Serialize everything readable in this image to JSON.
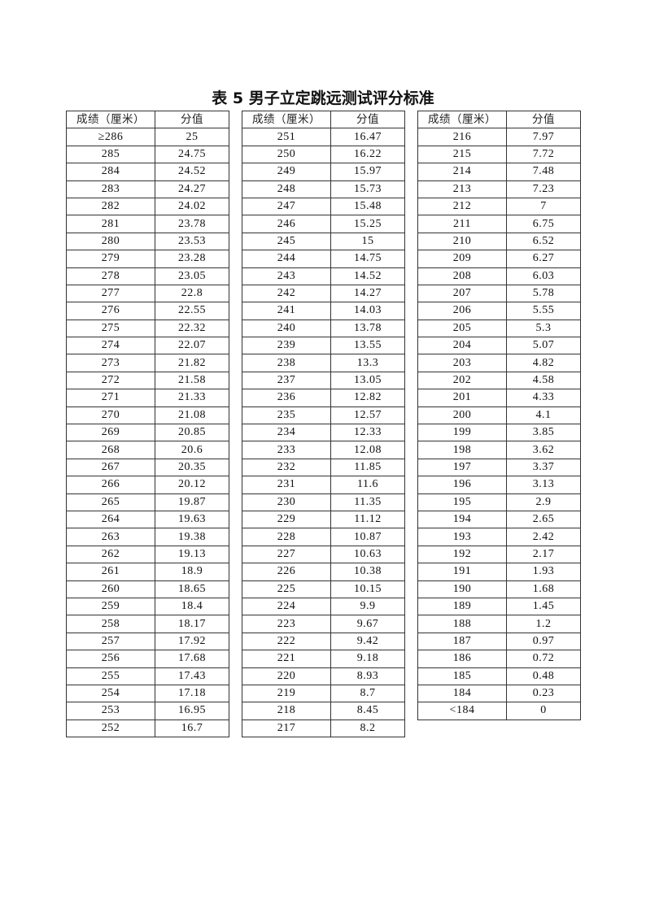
{
  "title": "表 5  男子立定跳远测试评分标准",
  "header": {
    "score": "成绩（厘米）",
    "points": "分值"
  },
  "tables": [
    {
      "rows": [
        [
          "≥286",
          "25"
        ],
        [
          "285",
          "24.75"
        ],
        [
          "284",
          "24.52"
        ],
        [
          "283",
          "24.27"
        ],
        [
          "282",
          "24.02"
        ],
        [
          "281",
          "23.78"
        ],
        [
          "280",
          "23.53"
        ],
        [
          "279",
          "23.28"
        ],
        [
          "278",
          "23.05"
        ],
        [
          "277",
          "22.8"
        ],
        [
          "276",
          "22.55"
        ],
        [
          "275",
          "22.32"
        ],
        [
          "274",
          "22.07"
        ],
        [
          "273",
          "21.82"
        ],
        [
          "272",
          "21.58"
        ],
        [
          "271",
          "21.33"
        ],
        [
          "270",
          "21.08"
        ],
        [
          "269",
          "20.85"
        ],
        [
          "268",
          "20.6"
        ],
        [
          "267",
          "20.35"
        ],
        [
          "266",
          "20.12"
        ],
        [
          "265",
          "19.87"
        ],
        [
          "264",
          "19.63"
        ],
        [
          "263",
          "19.38"
        ],
        [
          "262",
          "19.13"
        ],
        [
          "261",
          "18.9"
        ],
        [
          "260",
          "18.65"
        ],
        [
          "259",
          "18.4"
        ],
        [
          "258",
          "18.17"
        ],
        [
          "257",
          "17.92"
        ],
        [
          "256",
          "17.68"
        ],
        [
          "255",
          "17.43"
        ],
        [
          "254",
          "17.18"
        ],
        [
          "253",
          "16.95"
        ],
        [
          "252",
          "16.7"
        ]
      ]
    },
    {
      "rows": [
        [
          "251",
          "16.47"
        ],
        [
          "250",
          "16.22"
        ],
        [
          "249",
          "15.97"
        ],
        [
          "248",
          "15.73"
        ],
        [
          "247",
          "15.48"
        ],
        [
          "246",
          "15.25"
        ],
        [
          "245",
          "15"
        ],
        [
          "244",
          "14.75"
        ],
        [
          "243",
          "14.52"
        ],
        [
          "242",
          "14.27"
        ],
        [
          "241",
          "14.03"
        ],
        [
          "240",
          "13.78"
        ],
        [
          "239",
          "13.55"
        ],
        [
          "238",
          "13.3"
        ],
        [
          "237",
          "13.05"
        ],
        [
          "236",
          "12.82"
        ],
        [
          "235",
          "12.57"
        ],
        [
          "234",
          "12.33"
        ],
        [
          "233",
          "12.08"
        ],
        [
          "232",
          "11.85"
        ],
        [
          "231",
          "11.6"
        ],
        [
          "230",
          "11.35"
        ],
        [
          "229",
          "11.12"
        ],
        [
          "228",
          "10.87"
        ],
        [
          "227",
          "10.63"
        ],
        [
          "226",
          "10.38"
        ],
        [
          "225",
          "10.15"
        ],
        [
          "224",
          "9.9"
        ],
        [
          "223",
          "9.67"
        ],
        [
          "222",
          "9.42"
        ],
        [
          "221",
          "9.18"
        ],
        [
          "220",
          "8.93"
        ],
        [
          "219",
          "8.7"
        ],
        [
          "218",
          "8.45"
        ],
        [
          "217",
          "8.2"
        ]
      ]
    },
    {
      "rows": [
        [
          "216",
          "7.97"
        ],
        [
          "215",
          "7.72"
        ],
        [
          "214",
          "7.48"
        ],
        [
          "213",
          "7.23"
        ],
        [
          "212",
          "7"
        ],
        [
          "211",
          "6.75"
        ],
        [
          "210",
          "6.52"
        ],
        [
          "209",
          "6.27"
        ],
        [
          "208",
          "6.03"
        ],
        [
          "207",
          "5.78"
        ],
        [
          "206",
          "5.55"
        ],
        [
          "205",
          "5.3"
        ],
        [
          "204",
          "5.07"
        ],
        [
          "203",
          "4.82"
        ],
        [
          "202",
          "4.58"
        ],
        [
          "201",
          "4.33"
        ],
        [
          "200",
          "4.1"
        ],
        [
          "199",
          "3.85"
        ],
        [
          "198",
          "3.62"
        ],
        [
          "197",
          "3.37"
        ],
        [
          "196",
          "3.13"
        ],
        [
          "195",
          "2.9"
        ],
        [
          "194",
          "2.65"
        ],
        [
          "193",
          "2.42"
        ],
        [
          "192",
          "2.17"
        ],
        [
          "191",
          "1.93"
        ],
        [
          "190",
          "1.68"
        ],
        [
          "189",
          "1.45"
        ],
        [
          "188",
          "1.2"
        ],
        [
          "187",
          "0.97"
        ],
        [
          "186",
          "0.72"
        ],
        [
          "185",
          "0.48"
        ],
        [
          "184",
          "0.23"
        ],
        [
          "<184",
          "0"
        ]
      ]
    }
  ]
}
